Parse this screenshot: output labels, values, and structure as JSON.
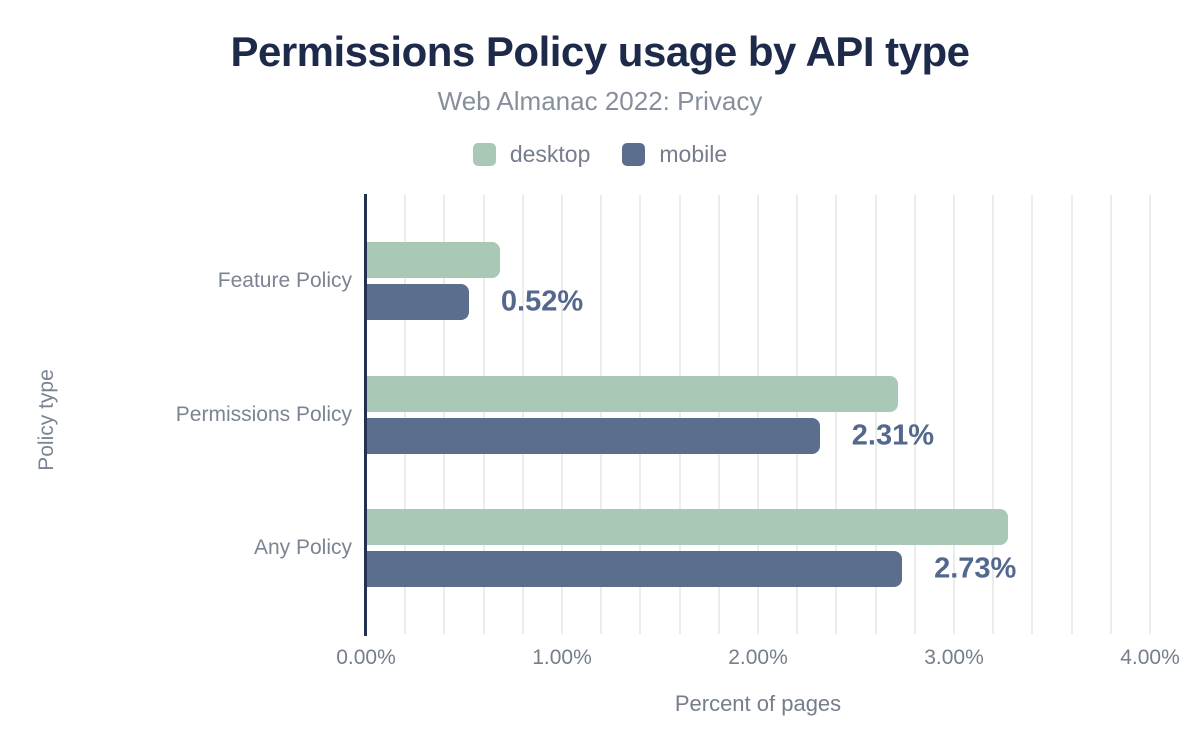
{
  "chart_data": {
    "type": "bar",
    "orientation": "horizontal",
    "title": "Permissions Policy usage by API type",
    "subtitle": "Web Almanac 2022: Privacy",
    "categories": [
      "Feature Policy",
      "Permissions Policy",
      "Any Policy"
    ],
    "series": [
      {
        "name": "desktop",
        "color": "#a9c8b6",
        "values": [
          0.68,
          2.71,
          3.27
        ]
      },
      {
        "name": "mobile",
        "color": "#5b6e8e",
        "values": [
          0.52,
          2.31,
          2.73
        ]
      }
    ],
    "annotations": [
      "0.52%",
      "2.31%",
      "2.73%"
    ],
    "annotation_series": "mobile",
    "xlabel": "Percent of pages",
    "ylabel": "Policy type",
    "x_ticks": [
      "0.00%",
      "1.00%",
      "2.00%",
      "3.00%",
      "4.00%"
    ],
    "xlim": [
      0,
      4
    ],
    "grid_step": 0.2,
    "grid": true,
    "legend_position": "top-center"
  },
  "colors": {
    "desktop": "#a9c8b6",
    "mobile": "#5b6e8e",
    "title": "#1d2a4a",
    "subtitle": "#878f9c",
    "muted_text": "#7b8492",
    "annotation": "#54678c",
    "axis_line": "#233150",
    "gridline": "#ececec",
    "background": "#ffffff"
  }
}
